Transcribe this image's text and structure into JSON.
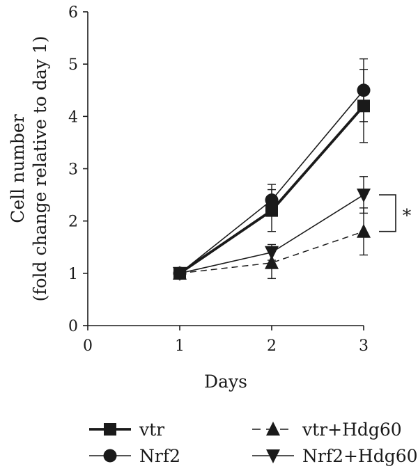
{
  "chart_data": {
    "type": "line",
    "xlabel": "Days",
    "ylabel_line1": "Cell number",
    "ylabel_line2": "(fold change relative to day 1)",
    "xlim": [
      0,
      3
    ],
    "ylim": [
      0,
      6
    ],
    "xticks": [
      "0",
      "1",
      "2",
      "3"
    ],
    "yticks": [
      "0",
      "1",
      "2",
      "3",
      "4",
      "5",
      "6"
    ],
    "grid": false,
    "legend_position": "bottom",
    "x": [
      1,
      2,
      3
    ],
    "series": [
      {
        "name": "vtr",
        "values": [
          1.0,
          2.2,
          4.2
        ],
        "errors": [
          0.0,
          0.4,
          0.7
        ],
        "marker": "square",
        "line": "thick"
      },
      {
        "name": "Nrf2",
        "values": [
          1.0,
          2.4,
          4.5
        ],
        "errors": [
          0.0,
          0.3,
          0.6
        ],
        "marker": "circle",
        "line": "solid"
      },
      {
        "name": "vtr+Hdg60",
        "values": [
          1.0,
          1.2,
          1.8
        ],
        "errors": [
          0.0,
          0.3,
          0.45
        ],
        "marker": "triangle-up",
        "line": "dashed"
      },
      {
        "name": "Nrf2+Hdg60",
        "values": [
          1.0,
          1.4,
          2.5
        ],
        "errors": [
          0.0,
          0.15,
          0.35
        ],
        "marker": "triangle-down",
        "line": "solid"
      }
    ],
    "annotations": [
      {
        "text": "*",
        "between": [
          "vtr+Hdg60",
          "Nrf2+Hdg60"
        ],
        "x": 3
      }
    ],
    "color": "#1a1a1a"
  }
}
